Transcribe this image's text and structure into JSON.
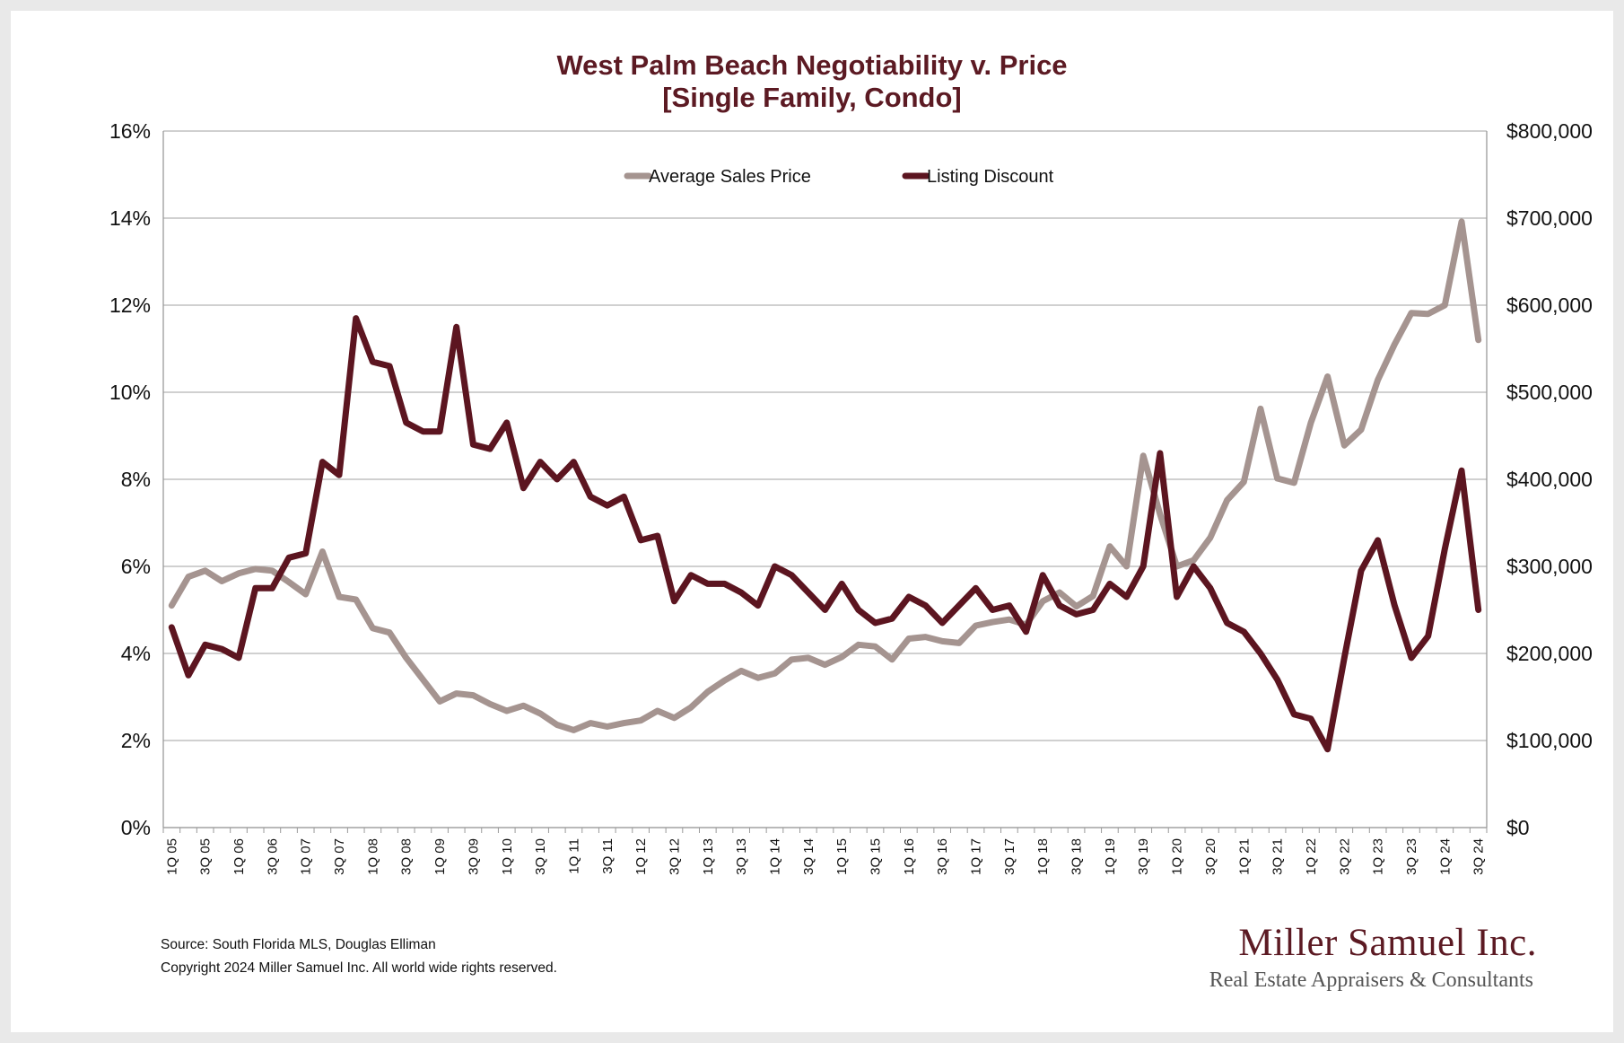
{
  "title_line1": "West Palm Beach Negotiability v. Price",
  "title_line2": "[Single Family, Condo]",
  "footer": {
    "source": "Source: South Florida MLS, Douglas Elliman",
    "copyright": "Copyright 2024 Miller Samuel Inc.  All world wide rights reserved."
  },
  "logo": {
    "name": "Miller Samuel Inc.",
    "tagline": "Real Estate Appraisers & Consultants"
  },
  "colors": {
    "title": "#5c1a23",
    "price_series": "#a59490",
    "discount_series": "#5c1520",
    "grid": "#b5b5b5"
  },
  "chart_data": {
    "type": "line",
    "title": "West Palm Beach Negotiability v. Price [Single Family, Condo]",
    "x_tick_labels": [
      "1Q 05",
      "3Q 05",
      "1Q 06",
      "3Q 06",
      "1Q 07",
      "3Q 07",
      "1Q 08",
      "3Q 08",
      "1Q 09",
      "3Q 09",
      "1Q 10",
      "3Q 10",
      "1Q 11",
      "3Q 11",
      "1Q 12",
      "3Q 12",
      "1Q 13",
      "3Q 13",
      "1Q 14",
      "3Q 14",
      "1Q 15",
      "3Q 15",
      "1Q 16",
      "3Q 16",
      "1Q 17",
      "3Q 17",
      "1Q 18",
      "3Q 18",
      "1Q 19",
      "3Q 19",
      "1Q 20",
      "3Q 20",
      "1Q 21",
      "3Q 21",
      "1Q 22",
      "3Q 22",
      "1Q 23",
      "3Q 23",
      "1Q 24",
      "3Q 24"
    ],
    "x": [
      "1Q 05",
      "2Q 05",
      "3Q 05",
      "4Q 05",
      "1Q 06",
      "2Q 06",
      "3Q 06",
      "4Q 06",
      "1Q 07",
      "2Q 07",
      "3Q 07",
      "4Q 07",
      "1Q 08",
      "2Q 08",
      "3Q 08",
      "4Q 08",
      "1Q 09",
      "2Q 09",
      "3Q 09",
      "4Q 09",
      "1Q 10",
      "2Q 10",
      "3Q 10",
      "4Q 10",
      "1Q 11",
      "2Q 11",
      "3Q 11",
      "4Q 11",
      "1Q 12",
      "2Q 12",
      "3Q 12",
      "4Q 12",
      "1Q 13",
      "2Q 13",
      "3Q 13",
      "4Q 13",
      "1Q 14",
      "2Q 14",
      "3Q 14",
      "4Q 14",
      "1Q 15",
      "2Q 15",
      "3Q 15",
      "4Q 15",
      "1Q 16",
      "2Q 16",
      "3Q 16",
      "4Q 16",
      "1Q 17",
      "2Q 17",
      "3Q 17",
      "4Q 17",
      "1Q 18",
      "2Q 18",
      "3Q 18",
      "4Q 18",
      "1Q 19",
      "2Q 19",
      "3Q 19",
      "4Q 19",
      "1Q 20",
      "2Q 20",
      "3Q 20",
      "4Q 20",
      "1Q 21",
      "2Q 21",
      "3Q 21",
      "4Q 21",
      "1Q 22",
      "2Q 22",
      "3Q 22",
      "4Q 22",
      "1Q 23",
      "2Q 23",
      "3Q 23",
      "4Q 23",
      "1Q 24",
      "2Q 24",
      "3Q 24"
    ],
    "y_left": {
      "ticks": [
        "0%",
        "2%",
        "4%",
        "6%",
        "8%",
        "10%",
        "12%",
        "14%",
        "16%"
      ],
      "range": [
        0,
        16
      ]
    },
    "y_right": {
      "ticks": [
        "$0",
        "$100,000",
        "$200,000",
        "$300,000",
        "$400,000",
        "$500,000",
        "$600,000",
        "$700,000",
        "$800,000"
      ],
      "range": [
        0,
        800000
      ]
    },
    "grid": true,
    "legend_position": "top-center",
    "series": [
      {
        "name": "Average Sales Price",
        "axis": "right",
        "values": [
          255000,
          288000,
          295000,
          283000,
          292000,
          297000,
          295000,
          282000,
          268000,
          317000,
          265000,
          262000,
          229000,
          224000,
          195000,
          170000,
          145000,
          154000,
          152000,
          142000,
          134000,
          140000,
          131000,
          118000,
          112000,
          120000,
          116000,
          120000,
          123000,
          134000,
          126000,
          138000,
          156000,
          169000,
          180000,
          172000,
          177000,
          193000,
          195000,
          187000,
          196000,
          210000,
          208000,
          193000,
          217000,
          219000,
          214000,
          212000,
          232000,
          236000,
          239000,
          233000,
          260000,
          270000,
          254000,
          266000,
          323000,
          300000,
          427000,
          360000,
          300000,
          307000,
          333000,
          376000,
          397000,
          481000,
          401000,
          396000,
          465000,
          518000,
          439000,
          457000,
          514000,
          555000,
          591000,
          590000,
          600000,
          696000,
          560000
        ]
      },
      {
        "name": "Listing Discount",
        "axis": "left",
        "values": [
          4.6,
          3.5,
          4.2,
          4.1,
          3.9,
          5.5,
          5.5,
          6.2,
          6.3,
          8.4,
          8.1,
          11.7,
          10.7,
          10.6,
          9.3,
          9.1,
          9.1,
          11.5,
          8.8,
          8.7,
          9.3,
          7.8,
          8.4,
          8.0,
          8.4,
          7.6,
          7.4,
          7.6,
          6.6,
          6.7,
          5.2,
          5.8,
          5.6,
          5.6,
          5.4,
          5.1,
          6.0,
          5.8,
          5.4,
          5.0,
          5.6,
          5.0,
          4.7,
          4.8,
          5.3,
          5.1,
          4.7,
          5.1,
          5.5,
          5.0,
          5.1,
          4.5,
          5.8,
          5.1,
          4.9,
          5.0,
          5.6,
          5.3,
          6.0,
          8.6,
          5.3,
          6.0,
          5.5,
          4.7,
          4.5,
          4.0,
          3.4,
          2.6,
          2.5,
          1.8,
          3.9,
          5.9,
          6.6,
          5.1,
          3.9,
          4.4,
          6.4,
          8.2,
          5.0
        ]
      }
    ]
  }
}
